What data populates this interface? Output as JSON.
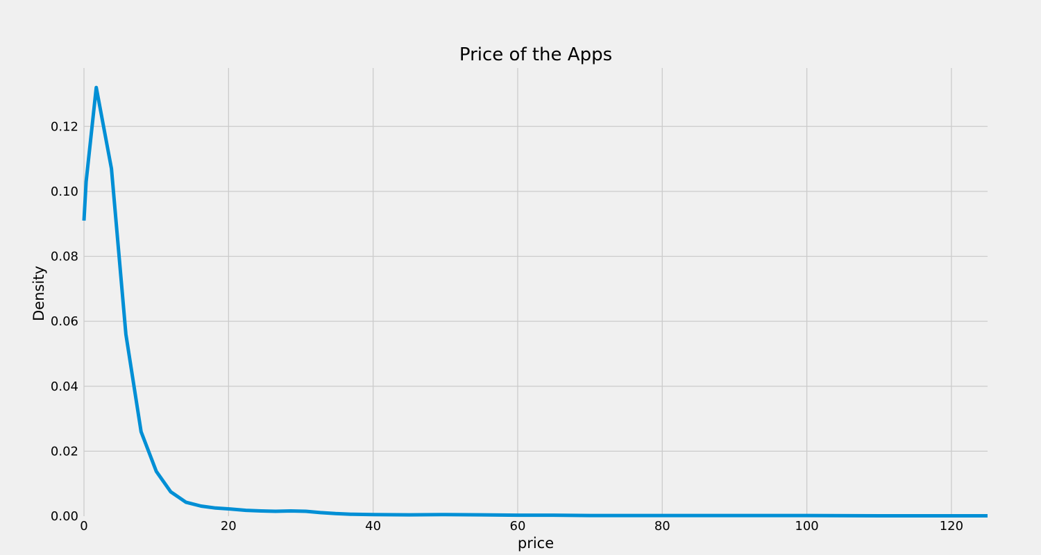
{
  "chart_data": {
    "type": "line",
    "title": "Price of the Apps",
    "xlabel": "price",
    "ylabel": "Density",
    "xlim": [
      0,
      125
    ],
    "ylim": [
      0,
      0.138
    ],
    "xticks": [
      0,
      20,
      40,
      60,
      80,
      100,
      120
    ],
    "xtick_labels": [
      "0",
      "20",
      "40",
      "60",
      "80",
      "100",
      "120"
    ],
    "yticks": [
      0,
      0.02,
      0.04,
      0.06,
      0.08,
      0.1,
      0.12
    ],
    "ytick_labels": [
      "0.00",
      "0.02",
      "0.04",
      "0.06",
      "0.08",
      "0.10",
      "0.12"
    ],
    "grid": true,
    "color": "#008fd5",
    "x": [
      0,
      0.3,
      1.7,
      3.8,
      5.8,
      7.9,
      10.0,
      12.0,
      14.1,
      16.2,
      18.2,
      20.3,
      22.4,
      24.5,
      26.5,
      28.6,
      30.7,
      32.7,
      34.8,
      36.9,
      40.0,
      45.0,
      50.0,
      55.0,
      60.0,
      65.0,
      70.0,
      80.0,
      90.0,
      100.0,
      110.0,
      125.0
    ],
    "y": [
      0.091,
      0.103,
      0.132,
      0.107,
      0.056,
      0.026,
      0.0138,
      0.0075,
      0.0043,
      0.0031,
      0.0025,
      0.0022,
      0.0018,
      0.0016,
      0.0015,
      0.0016,
      0.0015,
      0.0011,
      0.0008,
      0.0006,
      0.0005,
      0.0004,
      0.0005,
      0.0004,
      0.0003,
      0.0003,
      0.0002,
      0.0002,
      0.0002,
      0.0002,
      0.0001,
      0.0001
    ]
  }
}
